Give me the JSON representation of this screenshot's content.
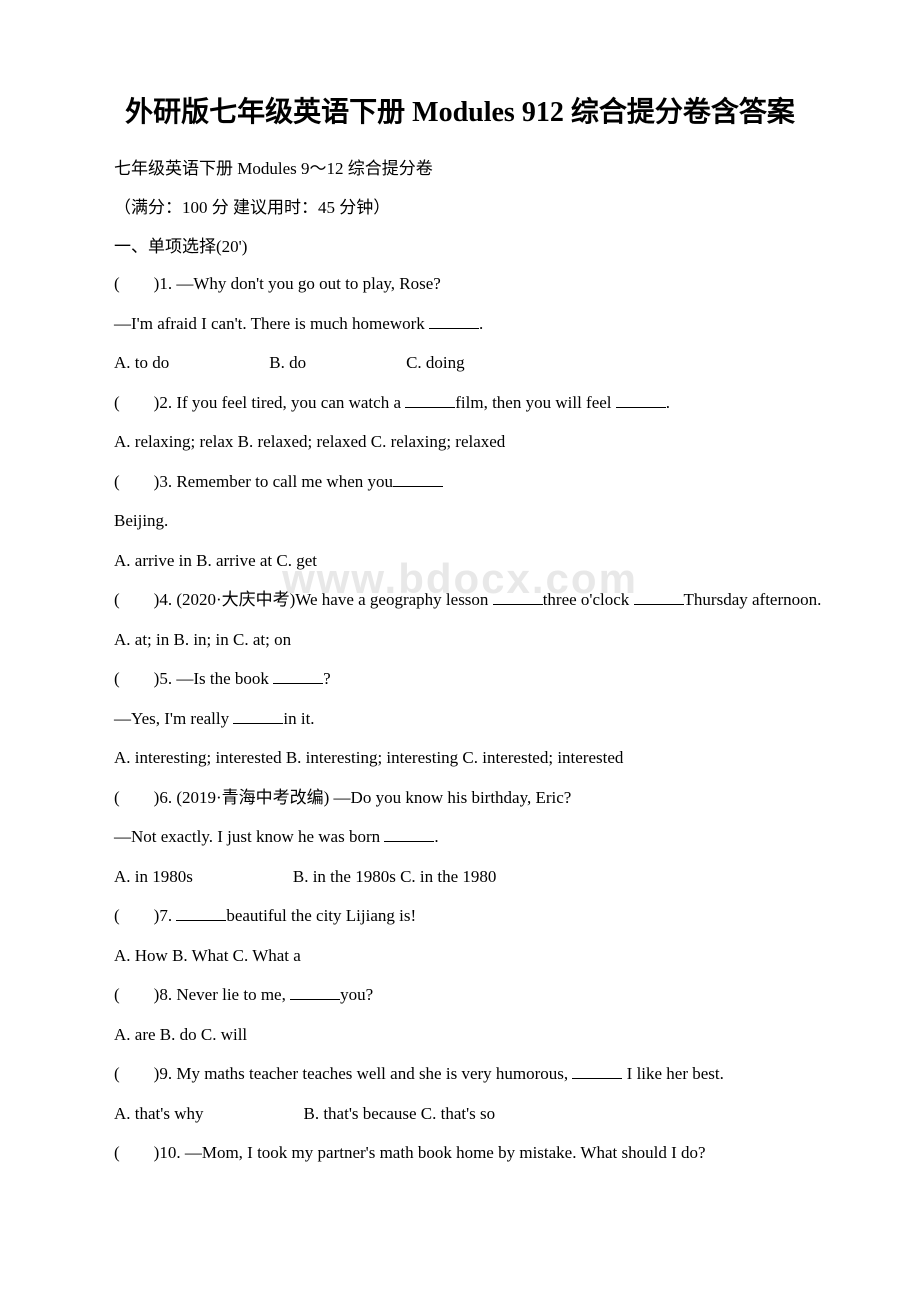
{
  "watermark": "www.bdocx.com",
  "title": "外研版七年级英语下册 Modules 912 综合提分卷含答案",
  "subtitle": "七年级英语下册 Modules 9～12 综合提分卷",
  "meta": "（满分：100 分 建议用时：45 分钟）",
  "section1": "一、单项选择(20')",
  "q1a": "(　　)1. —Why don't you go out to play, Rose?",
  "q1b": "—I'm afraid I can't. There is much homework ",
  "q1b_end": ".",
  "q1c": "A. to do",
  "q1d": "B. do",
  "q1e": "C. doing",
  "q2a": "(　　)2. If you feel tired, you can watch a ",
  "q2a_mid": "film, then you will feel ",
  "q2a_end": ".",
  "q2b": "A. relaxing; relax     B. relaxed; relaxed C. relaxing; relaxed",
  "q3a": "(　　)3. Remember to call me when you",
  "q3b": "Beijing.",
  "q3c": "A. arrive in   B. arrive at   C. get",
  "q4a": "(　　)4. (2020·大庆中考)We have a geography lesson ",
  "q4a_end": "three o'clock ",
  "q4b": "Thursday afternoon.",
  "q4c": "A. at; in   B. in; in   C. at; on",
  "q5a": "(　　)5. —Is the book ",
  "q5a_end": "?",
  "q5b": "—Yes, I'm really ",
  "q5b_end": "in it.",
  "q5c": "A. interesting; interested B. interesting; interesting C. interested; interested",
  "q6a": "(　　)6. (2019·青海中考改编) —Do you know his birthday, Eric?",
  "q6b": "—Not exactly. I just know he was born ",
  "q6b_end": ".",
  "q6c": "A. in 1980s",
  "q6d": "B. in the 1980s C. in the 1980",
  "q7a": "(　　)7. ",
  "q7a_end": "beautiful the city Lijiang is!",
  "q7b": "A. How   B. What   C. What a",
  "q8a": "(　　)8. Never lie to me, ",
  "q8a_end": "you?",
  "q8b": "A. are    B. do   C. will",
  "q9a": "(　　)9. My maths teacher teaches well and she is very humorous, ",
  "q9a_end": " I like her best.",
  "q9b": "A. that's why",
  "q9c": "B. that's because C. that's so",
  "q10a": "(　　)10. —Mom, I took my partner's math book home by mistake. What should I do?"
}
